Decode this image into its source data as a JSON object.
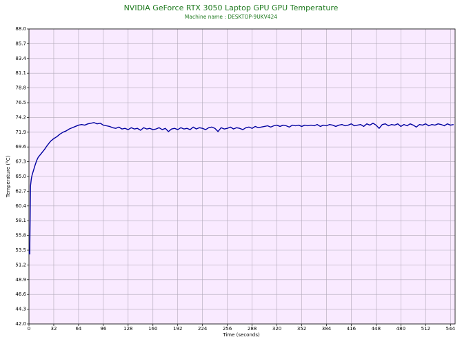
{
  "chart_data": {
    "type": "line",
    "title": "NVIDIA GeForce RTX 3050 Laptop GPU GPU Temperature",
    "subtitle": "Machine name : DESKTOP-9UKV424",
    "xlabel": "Time (seconds)",
    "ylabel": "Temperature (°C)",
    "color": "#0000a0",
    "grid": true,
    "xlim": [
      0,
      550
    ],
    "ylim": [
      42,
      88
    ],
    "xticks": [
      0,
      32,
      64,
      96,
      128,
      160,
      192,
      224,
      256,
      288,
      320,
      352,
      384,
      416,
      448,
      480,
      512,
      544
    ],
    "yticks": [
      {
        "value": 42,
        "label": "42.0"
      },
      44.3,
      46.6,
      48.9,
      51.2,
      53.5,
      55.8,
      58.1,
      60.4,
      62.7,
      {
        "value": 65,
        "label": "65.0"
      },
      67.3,
      69.6,
      71.9,
      74.2,
      76.5,
      78.8,
      81.1,
      83.4,
      85.7,
      {
        "value": 88,
        "label": "88.0"
      }
    ],
    "x": [
      0,
      1,
      2,
      3,
      4,
      6,
      8,
      10,
      12,
      14,
      16,
      20,
      24,
      28,
      32,
      36,
      40,
      44,
      48,
      52,
      56,
      60,
      64,
      68,
      72,
      76,
      80,
      84,
      88,
      92,
      96,
      100,
      104,
      108,
      112,
      116,
      120,
      124,
      128,
      132,
      136,
      140,
      144,
      148,
      152,
      156,
      160,
      164,
      168,
      172,
      176,
      180,
      184,
      188,
      192,
      196,
      200,
      204,
      208,
      212,
      216,
      220,
      224,
      228,
      232,
      236,
      240,
      244,
      248,
      252,
      256,
      260,
      264,
      268,
      272,
      276,
      280,
      284,
      288,
      292,
      296,
      300,
      304,
      308,
      312,
      316,
      320,
      324,
      328,
      332,
      336,
      340,
      344,
      348,
      352,
      356,
      360,
      364,
      368,
      372,
      376,
      380,
      384,
      388,
      392,
      396,
      400,
      404,
      408,
      412,
      416,
      420,
      424,
      428,
      432,
      436,
      440,
      444,
      448,
      452,
      456,
      460,
      464,
      468,
      472,
      476,
      480,
      484,
      488,
      492,
      496,
      500,
      504,
      508,
      512,
      516,
      520,
      524,
      528,
      532,
      536,
      540,
      544,
      548
    ],
    "values": [
      53.3,
      52.9,
      63.5,
      64.6,
      65.2,
      66.0,
      66.8,
      67.5,
      68.0,
      68.3,
      68.6,
      69.2,
      69.9,
      70.5,
      70.9,
      71.2,
      71.6,
      71.9,
      72.1,
      72.4,
      72.6,
      72.8,
      73.0,
      73.1,
      73.0,
      73.2,
      73.3,
      73.4,
      73.2,
      73.3,
      73.0,
      72.9,
      72.8,
      72.6,
      72.5,
      72.7,
      72.4,
      72.5,
      72.3,
      72.6,
      72.4,
      72.5,
      72.2,
      72.6,
      72.4,
      72.5,
      72.3,
      72.4,
      72.6,
      72.3,
      72.5,
      72.0,
      72.4,
      72.5,
      72.3,
      72.6,
      72.4,
      72.5,
      72.3,
      72.7,
      72.4,
      72.6,
      72.5,
      72.3,
      72.6,
      72.7,
      72.5,
      72.0,
      72.6,
      72.4,
      72.5,
      72.7,
      72.4,
      72.6,
      72.5,
      72.3,
      72.6,
      72.7,
      72.5,
      72.8,
      72.6,
      72.7,
      72.8,
      72.9,
      72.7,
      72.9,
      73.0,
      72.8,
      73.0,
      72.9,
      72.7,
      73.0,
      72.9,
      73.0,
      72.8,
      73.0,
      72.9,
      73.0,
      72.9,
      73.1,
      72.8,
      73.0,
      72.9,
      73.1,
      73.0,
      72.8,
      73.0,
      73.1,
      72.9,
      73.0,
      73.2,
      72.9,
      73.0,
      73.1,
      72.8,
      73.2,
      73.0,
      73.3,
      73.0,
      72.5,
      73.1,
      73.2,
      72.9,
      73.1,
      73.0,
      73.2,
      72.8,
      73.1,
      72.9,
      73.2,
      73.0,
      72.7,
      73.1,
      73.0,
      73.2,
      72.9,
      73.1,
      73.0,
      73.2,
      73.1,
      72.9,
      73.2,
      73.0,
      73.1
    ]
  }
}
